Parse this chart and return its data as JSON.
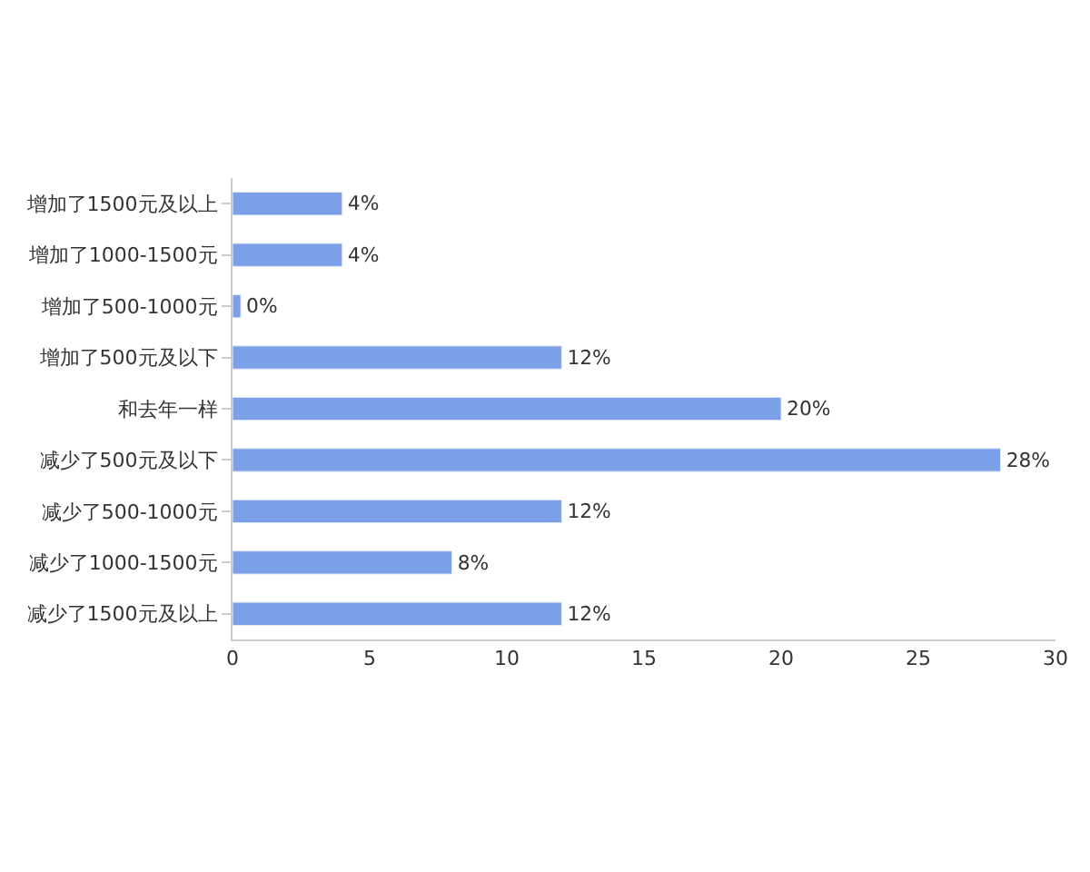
{
  "chart_data": {
    "type": "bar",
    "orientation": "horizontal",
    "categories": [
      "增加了1500元及以上",
      "增加了1000-1500元",
      "增加了500-1000元",
      "增加了500元及以下",
      "和去年一样",
      "减少了500元及以下",
      "减少了500-1000元",
      "减少了1000-1500元",
      "减少了1500元及以上"
    ],
    "values": [
      4,
      4,
      0.3,
      12,
      20,
      28,
      12,
      8,
      12
    ],
    "value_labels": [
      "4%",
      "4%",
      "0%",
      "12%",
      "20%",
      "28%",
      "12%",
      "8%",
      "12%"
    ],
    "color": "#7ba0e8",
    "xlim": [
      0,
      30
    ],
    "xticks": [
      0,
      5,
      10,
      15,
      20,
      25,
      30
    ],
    "legend": false
  }
}
